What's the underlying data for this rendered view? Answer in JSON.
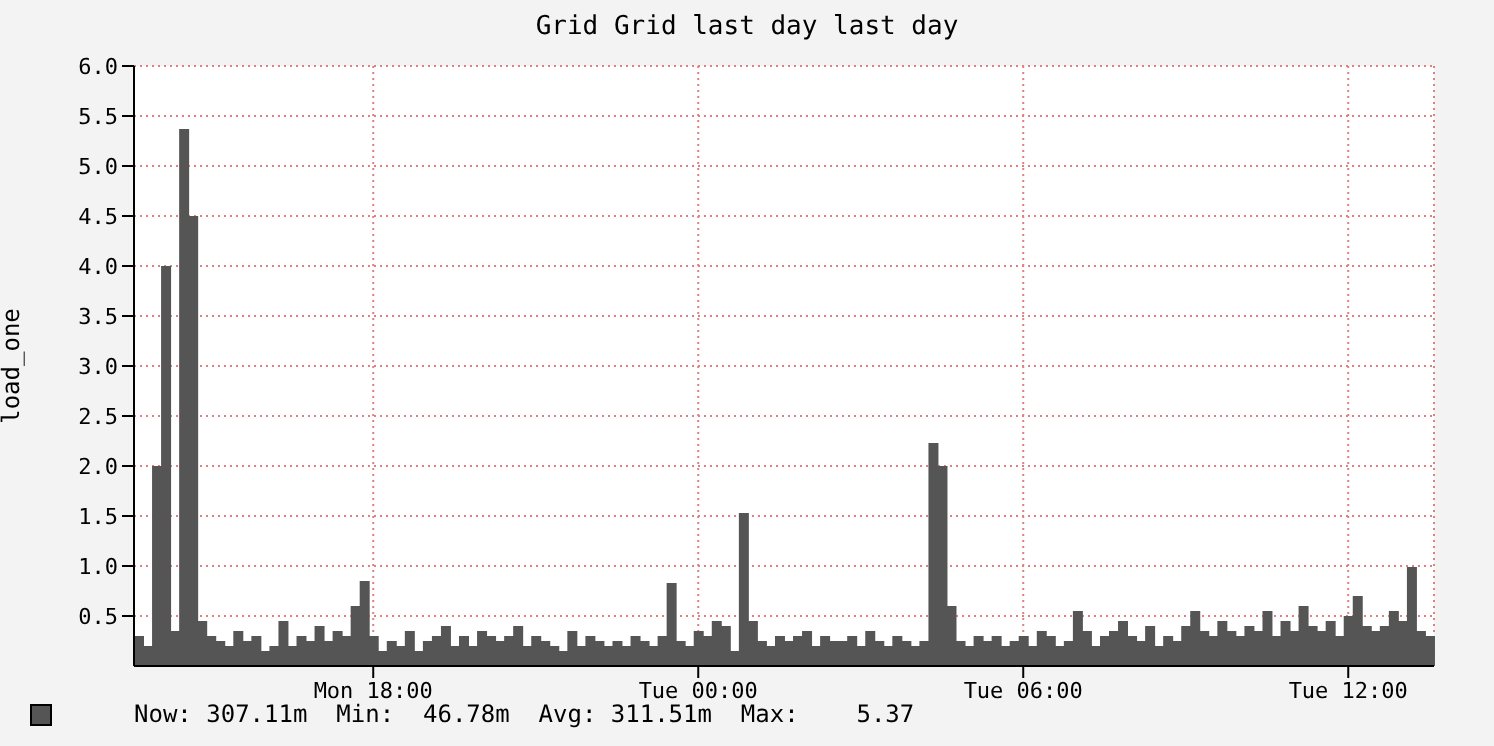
{
  "chart_data": {
    "type": "bar",
    "title": "Grid Grid last day last day",
    "ylabel": "load_one",
    "categories": [
      null,
      null,
      null,
      null,
      null,
      null,
      null,
      null,
      null,
      null,
      null,
      null,
      null,
      null,
      null,
      null,
      null,
      null,
      null,
      null,
      null,
      null,
      null,
      null,
      null,
      null,
      "Mon 18:00",
      null,
      null,
      null,
      null,
      null,
      null,
      null,
      null,
      null,
      null,
      null,
      null,
      null,
      null,
      null,
      null,
      null,
      null,
      null,
      null,
      null,
      null,
      null,
      null,
      null,
      null,
      null,
      null,
      null,
      null,
      null,
      null,
      null,
      null,
      null,
      "Tue 00:00",
      null,
      null,
      null,
      null,
      null,
      null,
      null,
      null,
      null,
      null,
      null,
      null,
      null,
      null,
      null,
      null,
      null,
      null,
      null,
      null,
      null,
      null,
      null,
      null,
      null,
      null,
      null,
      null,
      null,
      null,
      null,
      null,
      null,
      null,
      null,
      "Tue 06:00",
      null,
      null,
      null,
      null,
      null,
      null,
      null,
      null,
      null,
      null,
      null,
      null,
      null,
      null,
      null,
      null,
      null,
      null,
      null,
      null,
      null,
      null,
      null,
      null,
      null,
      null,
      null,
      null,
      null,
      null,
      null,
      null,
      null,
      null,
      null,
      "Tue 12:00",
      null,
      null,
      null,
      null,
      null,
      null,
      null,
      null,
      null
    ],
    "series": [
      {
        "color": "#555555",
        "values": [
          0.3,
          0.2,
          2.0,
          4.0,
          0.35,
          5.37,
          4.5,
          0.45,
          0.3,
          0.25,
          0.2,
          0.35,
          0.25,
          0.3,
          0.15,
          0.2,
          0.45,
          0.2,
          0.3,
          0.25,
          0.4,
          0.25,
          0.35,
          0.3,
          0.6,
          0.85,
          0.3,
          0.15,
          0.25,
          0.2,
          0.35,
          0.15,
          0.25,
          0.3,
          0.4,
          0.2,
          0.3,
          0.2,
          0.35,
          0.3,
          0.25,
          0.3,
          0.4,
          0.2,
          0.3,
          0.25,
          0.2,
          0.15,
          0.35,
          0.2,
          0.3,
          0.25,
          0.2,
          0.25,
          0.2,
          0.3,
          0.25,
          0.2,
          0.3,
          0.83,
          0.25,
          0.2,
          0.35,
          0.3,
          0.45,
          0.4,
          0.15,
          1.53,
          0.45,
          0.25,
          0.2,
          0.3,
          0.25,
          0.3,
          0.35,
          0.2,
          0.3,
          0.25,
          0.25,
          0.3,
          0.2,
          0.35,
          0.25,
          0.2,
          0.3,
          0.25,
          0.2,
          0.25,
          2.23,
          2.0,
          0.6,
          0.25,
          0.2,
          0.3,
          0.25,
          0.3,
          0.2,
          0.25,
          0.3,
          0.2,
          0.35,
          0.3,
          0.2,
          0.25,
          0.55,
          0.35,
          0.2,
          0.3,
          0.35,
          0.45,
          0.3,
          0.25,
          0.4,
          0.2,
          0.3,
          0.25,
          0.4,
          0.55,
          0.35,
          0.3,
          0.45,
          0.35,
          0.3,
          0.4,
          0.35,
          0.55,
          0.3,
          0.45,
          0.35,
          0.6,
          0.4,
          0.35,
          0.45,
          0.3,
          0.5,
          0.7,
          0.4,
          0.35,
          0.4,
          0.55,
          0.45,
          0.99,
          0.35,
          0.3
        ]
      }
    ],
    "ylim": [
      0,
      6
    ],
    "yticks": [
      {
        "value": 0.5,
        "label": "0.5"
      },
      {
        "value": 1,
        "label": "1.0"
      },
      {
        "value": 1.5,
        "label": "1.5"
      },
      {
        "value": 2,
        "label": "2.0"
      },
      {
        "value": 2.5,
        "label": "2.5"
      },
      {
        "value": 3,
        "label": "3.0"
      },
      {
        "value": 3.5,
        "label": "3.5"
      },
      {
        "value": 4,
        "label": "4.0"
      },
      {
        "value": 4.5,
        "label": "4.5"
      },
      {
        "value": 5,
        "label": "5.0"
      },
      {
        "value": 5.5,
        "label": "5.5"
      },
      {
        "value": 6,
        "label": "6.0"
      }
    ],
    "grid": true,
    "annotations": [
      "Now: 307.11m  Min:  46.78m  Avg: 311.51m  Max:    5.37"
    ]
  }
}
